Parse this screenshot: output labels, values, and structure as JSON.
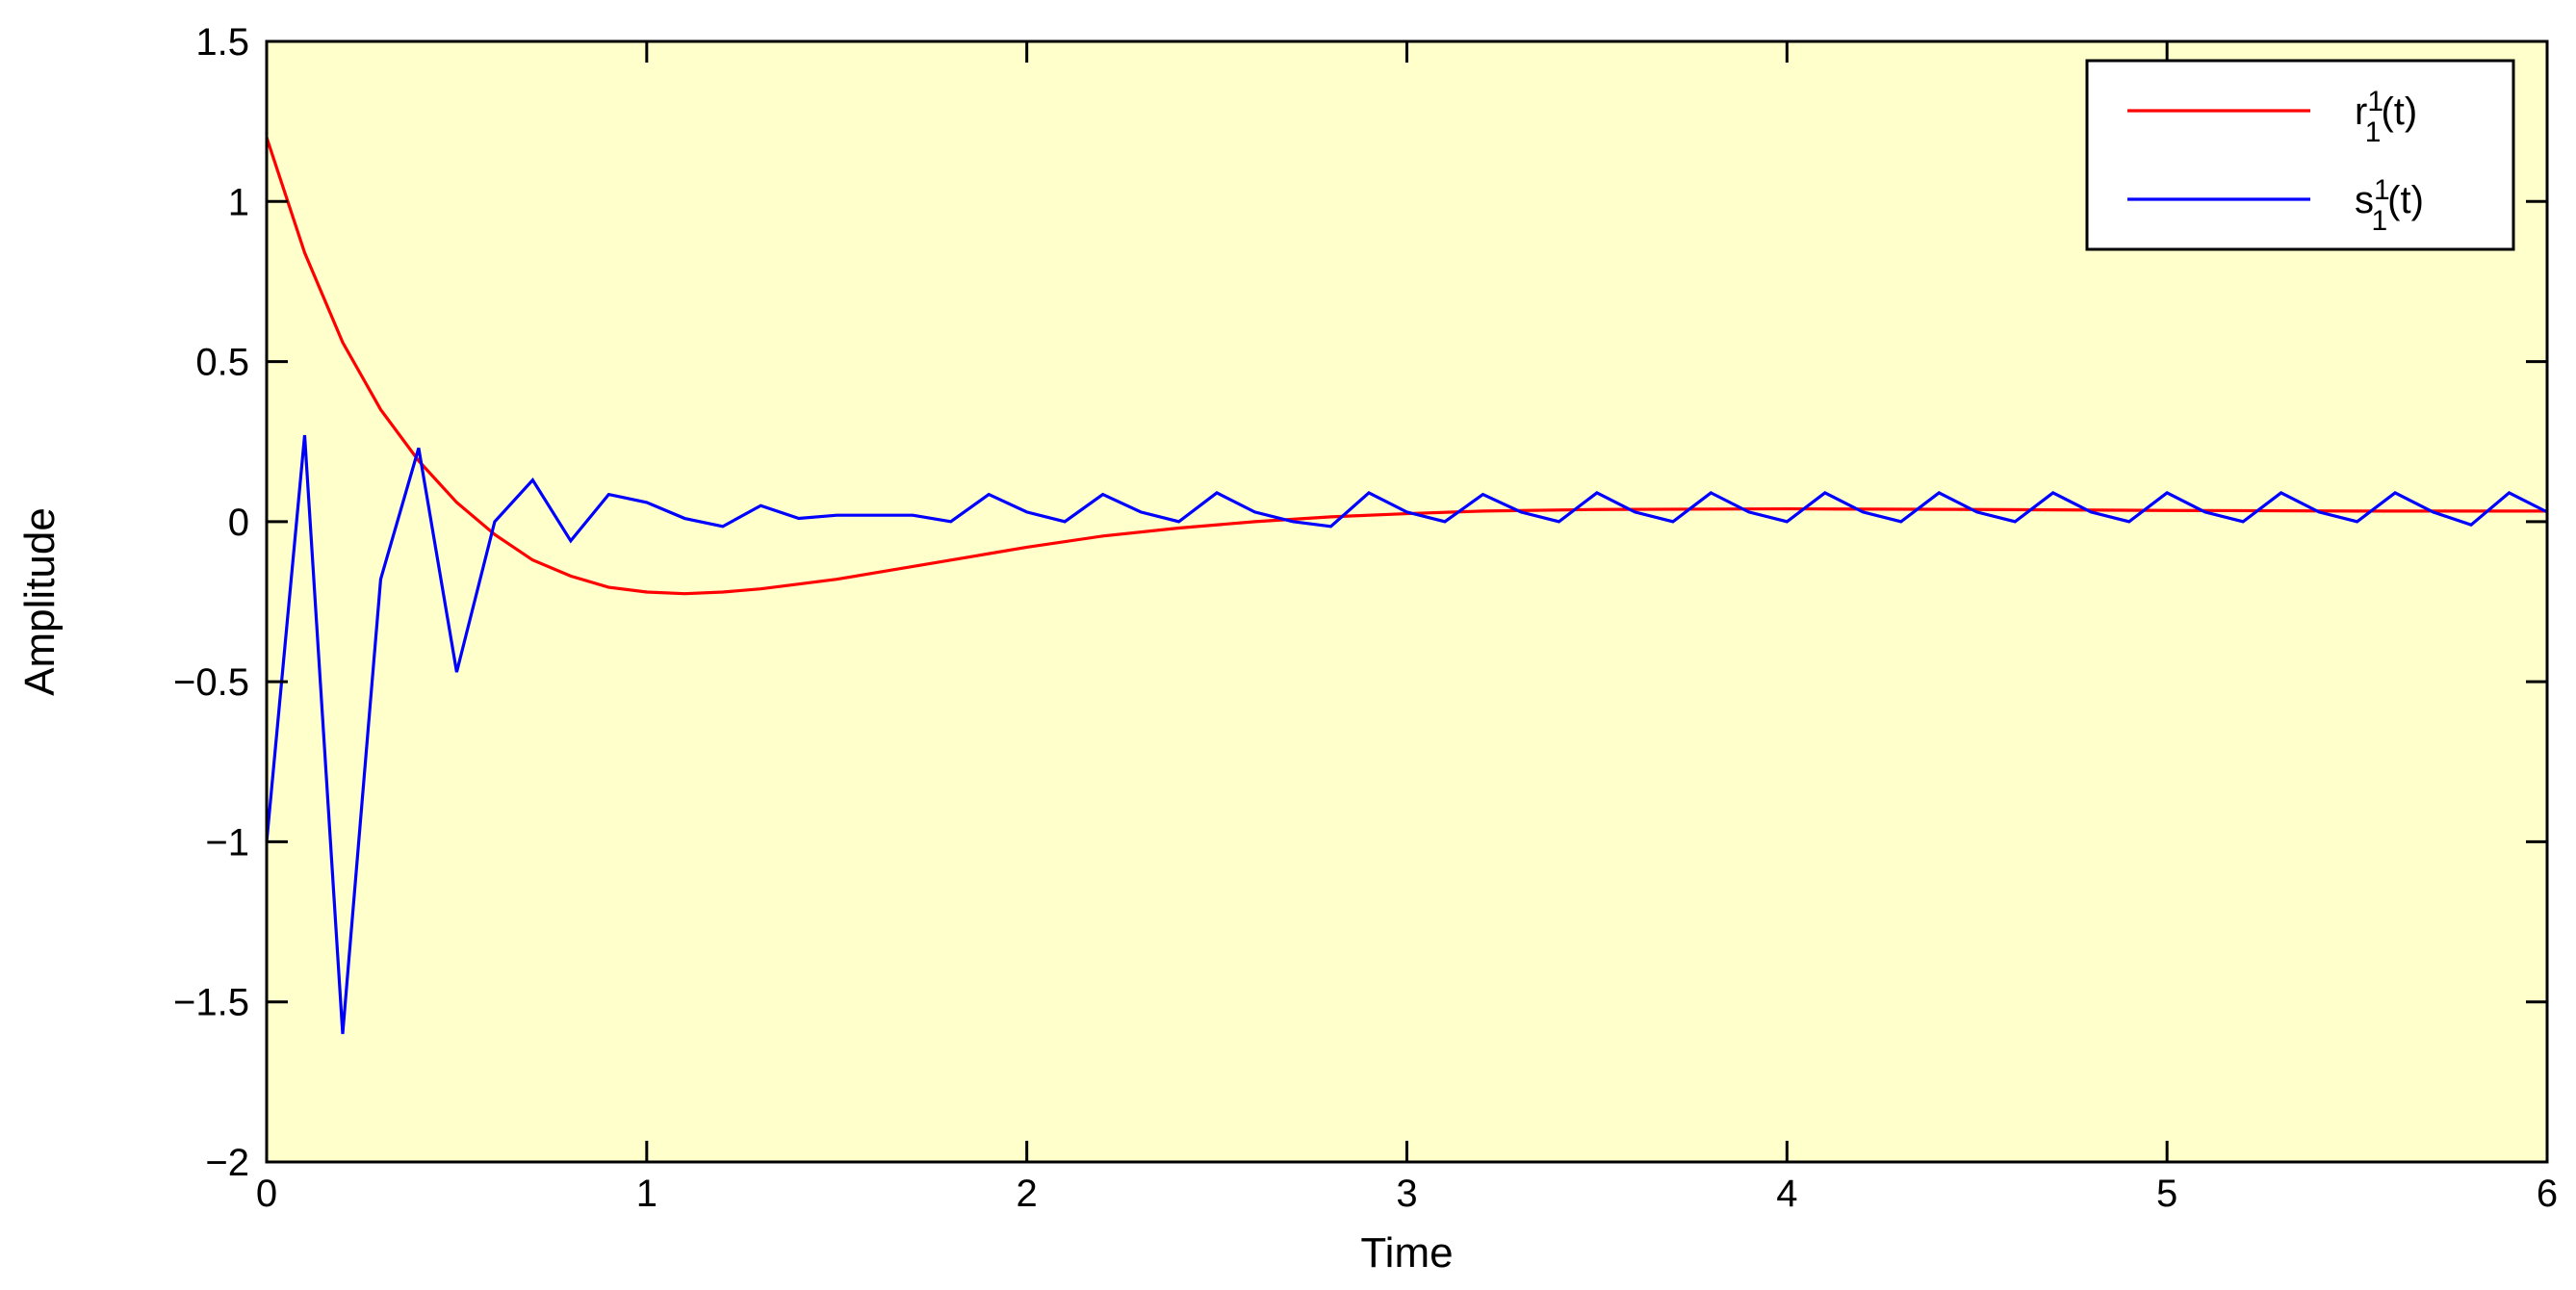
{
  "chart_data": {
    "type": "line",
    "title": "",
    "xlabel": "Time",
    "ylabel": "Amplitude",
    "xlim": [
      0,
      6
    ],
    "ylim": [
      -2,
      1.5
    ],
    "xticks": [
      0,
      1,
      2,
      3,
      4,
      5,
      6
    ],
    "xtick_labels": [
      "0",
      "1",
      "2",
      "3",
      "4",
      "5",
      "6"
    ],
    "yticks": [
      -2,
      -1.5,
      -1,
      -0.5,
      0,
      0.5,
      1,
      1.5
    ],
    "ytick_labels": [
      "−2",
      "−1.5",
      "−1",
      "−0.5",
      "0",
      "0.5",
      "1",
      "1.5"
    ],
    "grid": false,
    "legend_position": "top-right",
    "plot_background": "#ffffcc",
    "series": [
      {
        "name": "r",
        "name_sub": "1",
        "name_sup": "1",
        "name_suffix": "(t)",
        "color": "#ff0000",
        "x": [
          0,
          0.1,
          0.2,
          0.3,
          0.4,
          0.5,
          0.6,
          0.7,
          0.8,
          0.9,
          1.0,
          1.1,
          1.2,
          1.3,
          1.4,
          1.5,
          1.6,
          1.7,
          1.8,
          1.9,
          2.0,
          2.2,
          2.4,
          2.6,
          2.8,
          3.0,
          3.2,
          3.5,
          4.0,
          4.5,
          5.0,
          5.5,
          6.0
        ],
        "y": [
          1.2,
          0.84,
          0.56,
          0.35,
          0.19,
          0.06,
          -0.04,
          -0.12,
          -0.17,
          -0.205,
          -0.22,
          -0.225,
          -0.22,
          -0.21,
          -0.195,
          -0.18,
          -0.16,
          -0.14,
          -0.12,
          -0.1,
          -0.08,
          -0.045,
          -0.02,
          0.0,
          0.015,
          0.025,
          0.033,
          0.038,
          0.04,
          0.038,
          0.035,
          0.033,
          0.033
        ]
      },
      {
        "name": "s",
        "name_sub": "1",
        "name_sup": "1",
        "name_suffix": "(t)",
        "color": "#0000ff",
        "x": [
          0,
          0.1,
          0.2,
          0.3,
          0.4,
          0.5,
          0.6,
          0.7,
          0.8,
          0.9,
          1.0,
          1.1,
          1.2,
          1.3,
          1.4,
          1.5,
          1.6,
          1.7,
          1.8,
          1.9,
          2.0,
          2.1,
          2.2,
          2.3,
          2.4,
          2.5,
          2.6,
          2.7,
          2.8,
          2.9,
          3.0,
          3.1,
          3.2,
          3.3,
          3.4,
          3.5,
          3.6,
          3.7,
          3.8,
          3.9,
          4.0,
          4.1,
          4.2,
          4.3,
          4.4,
          4.5,
          4.6,
          4.7,
          4.8,
          4.9,
          5.0,
          5.1,
          5.2,
          5.3,
          5.4,
          5.5,
          5.6,
          5.7,
          5.8,
          5.9,
          6.0
        ],
        "y": [
          -1.0,
          0.27,
          -1.6,
          -0.18,
          0.23,
          -0.47,
          0.0,
          0.13,
          -0.06,
          0.085,
          0.06,
          0.01,
          -0.015,
          0.05,
          0.01,
          0.02,
          0.02,
          0.02,
          0.0,
          0.085,
          0.03,
          0.0,
          0.085,
          0.03,
          0.0,
          0.09,
          0.03,
          0.0,
          -0.015,
          0.09,
          0.03,
          0.0,
          0.085,
          0.03,
          0.0,
          0.09,
          0.03,
          0.0,
          0.09,
          0.03,
          0.0,
          0.09,
          0.03,
          0.0,
          0.09,
          0.03,
          0.0,
          0.09,
          0.03,
          0.0,
          0.09,
          0.03,
          0.0,
          0.09,
          0.03,
          0.0,
          0.09,
          0.03,
          -0.01,
          0.09,
          0.03
        ]
      }
    ]
  }
}
